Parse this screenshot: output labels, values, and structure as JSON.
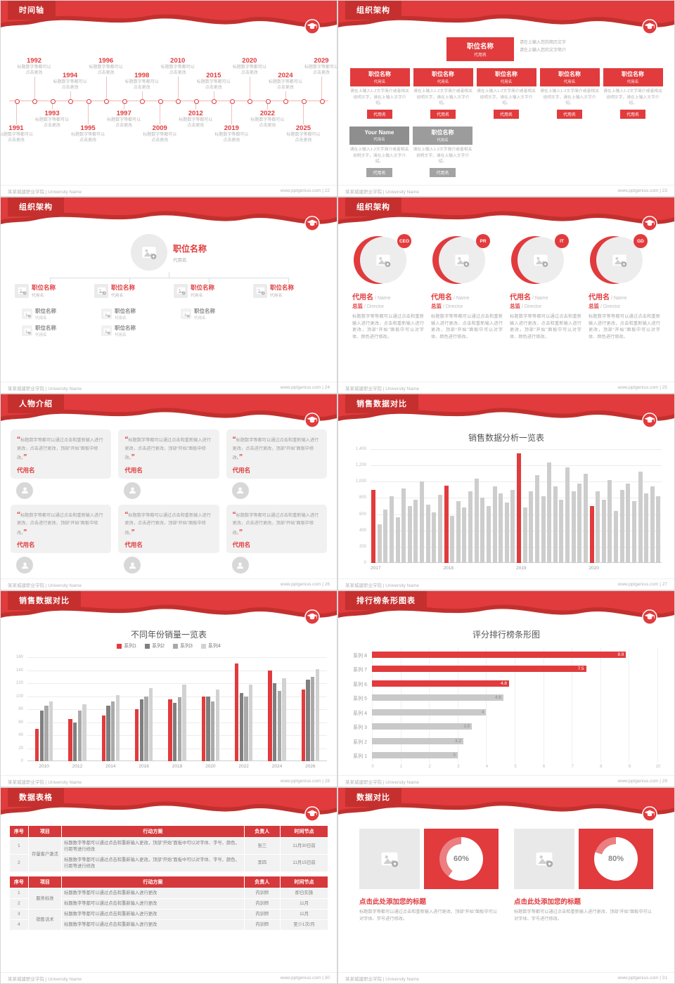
{
  "colors": {
    "accent": "#e13b3d",
    "accent_dark": "#c5302f",
    "bar_gray": "#cdcdcd",
    "text_gray": "#9a9a9a"
  },
  "icons": {
    "logo": "graduation-cap-icon",
    "placeholder": "image-plus-icon",
    "avatar": "person-icon",
    "quote_open": "“",
    "quote_close": "”"
  },
  "footer": {
    "left": "某某城建职业学院 | University Name",
    "site": "www.pptgenius.com"
  },
  "slides": {
    "s22": {
      "title": "时间轴",
      "page": "22",
      "caption": "标题数字等都可以点击更改",
      "items": [
        {
          "year": "1991",
          "side": "bottom",
          "level": 1
        },
        {
          "year": "1992",
          "side": "top",
          "level": 1
        },
        {
          "year": "1993",
          "side": "bottom",
          "level": 2
        },
        {
          "year": "1994",
          "side": "top",
          "level": 2
        },
        {
          "year": "1995",
          "side": "bottom",
          "level": 1
        },
        {
          "year": "1996",
          "side": "top",
          "level": 1
        },
        {
          "year": "1997",
          "side": "bottom",
          "level": 2
        },
        {
          "year": "1998",
          "side": "top",
          "level": 2
        },
        {
          "year": "2009",
          "side": "bottom",
          "level": 1
        },
        {
          "year": "2010",
          "side": "top",
          "level": 1
        },
        {
          "year": "2012",
          "side": "bottom",
          "level": 2
        },
        {
          "year": "2015",
          "side": "top",
          "level": 2
        },
        {
          "year": "2019",
          "side": "bottom",
          "level": 1
        },
        {
          "year": "2020",
          "side": "top",
          "level": 1
        },
        {
          "year": "2022",
          "side": "bottom",
          "level": 2
        },
        {
          "year": "2024",
          "side": "top",
          "level": 2
        },
        {
          "year": "2025",
          "side": "bottom",
          "level": 1
        },
        {
          "year": "2029",
          "side": "top",
          "level": 1
        }
      ]
    },
    "s23": {
      "title": "组织架构",
      "page": "23",
      "root": {
        "title": "职位名称",
        "code": "代用名",
        "note1": "请在上输入您的简历文字",
        "note2": "请在上输入您的文字简介"
      },
      "redRow": [
        {
          "title": "职位名称",
          "code": "代用名",
          "text": "请在上输入1-2文字简介或者相关说明文字，请在上输入文字介绍。",
          "chip": "代用名"
        },
        {
          "title": "职位名称",
          "code": "代用名",
          "text": "请在上输入1-2文字简介或者相关说明文字，请在上输入文字介绍。",
          "chip": "代用名"
        },
        {
          "title": "职位名称",
          "code": "代用名",
          "text": "请在上输入1-2文字简介或者相关说明文字，请在上输入文字介绍。",
          "chip": "代用名"
        },
        {
          "title": "职位名称",
          "code": "代用名",
          "text": "请在上输入1-2文字简介或者相关说明文字，请在上输入文字介绍。",
          "chip": "代用名"
        },
        {
          "title": "职位名称",
          "code": "代用名",
          "text": "请在上输入1-2文字简介或者相关说明文字，请在上输入文字介绍。",
          "chip": "代用名"
        }
      ],
      "grayRow": [
        {
          "title": "Your Name",
          "code": "代用名",
          "text": "请在上输入1-2文字简介或者相关说明文字，请在上输入文字介绍。",
          "chip": "代用名"
        },
        {
          "title": "职位名称",
          "code": "代用名",
          "text": "请在上输入1-2文字简介或者相关说明文字，请在上输入文字介绍。",
          "chip": "代用名"
        }
      ]
    },
    "s24": {
      "title": "组织架构",
      "page": "24",
      "root": {
        "title": "职位名称",
        "code": "代用名"
      },
      "children": [
        {
          "title": "职位名称",
          "code": "代用名",
          "subs": [
            {
              "title": "职位名称",
              "code": "代用名"
            },
            {
              "title": "职位名称",
              "code": "代用名"
            }
          ]
        },
        {
          "title": "职位名称",
          "code": "代用名",
          "subs": [
            {
              "title": "职位名称",
              "code": "代用名"
            },
            {
              "title": "职位名称",
              "code": "代用名"
            }
          ]
        },
        {
          "title": "职位名称",
          "code": "代用名",
          "subs": [
            {
              "title": "职位名称",
              "code": "代用名"
            }
          ]
        },
        {
          "title": "职位名称",
          "code": "代用名",
          "subs": []
        }
      ]
    },
    "s25": {
      "title": "组织架构",
      "page": "25",
      "name": "代用名",
      "nameEn": "Name",
      "role": "总监",
      "roleEn": "Director",
      "text": "标题数字等等都可以通过点击和重新输入进行更改，点击和重新输入进行更改，顶部“开始”面板中可以对字体、颜色进行修改。",
      "items": [
        {
          "badge": "CEO"
        },
        {
          "badge": "PR"
        },
        {
          "badge": "IT"
        },
        {
          "badge": "GD"
        }
      ]
    },
    "s26": {
      "title": "人物介绍",
      "page": "26",
      "cards": [
        {
          "text": "标题数字等都可以通过点击和重新输入进行更改，点击进行更改，顶部“开始”面板中修改。",
          "name": "代用名"
        },
        {
          "text": "标题数字等都可以通过点击和重新输入进行更改，点击进行更改，顶部“开始”面板中修改。",
          "name": "代用名"
        },
        {
          "text": "标题数字等都可以通过点击和重新输入进行更改，点击进行更改，顶部“开始”面板中修改。",
          "name": "代用名"
        },
        {
          "text": "标题数字等都可以通过点击和重新输入进行更改，点击进行更改，顶部“开始”面板中修改。",
          "name": "代用名"
        },
        {
          "text": "标题数字等都可以通过点击和重新输入进行更改，点击进行更改，顶部“开始”面板中修改。",
          "name": "代用名"
        },
        {
          "text": "标题数字等都可以通过点击和重新输入进行更改，点击进行更改，顶部“开始”面板中修改。",
          "name": "代用名"
        }
      ]
    },
    "s27": {
      "title": "销售数据对比",
      "page": "27",
      "chart_data": {
        "type": "bar",
        "title": "销售数据分析一览表",
        "x_groups": [
          "2017",
          "2018",
          "2019",
          "2020"
        ],
        "values": [
          900,
          480,
          660,
          820,
          560,
          920,
          700,
          780,
          1000,
          720,
          620,
          840,
          950,
          580,
          760,
          680,
          880,
          1040,
          800,
          700,
          940,
          860,
          740,
          900,
          1350,
          680,
          880,
          1080,
          820,
          1240,
          940,
          780,
          1180,
          880,
          980,
          1100,
          700,
          880,
          780,
          1020,
          640,
          900,
          980,
          760,
          1120,
          860,
          940,
          820
        ],
        "red_indices": [
          0,
          12,
          24,
          36
        ],
        "ylim": [
          0,
          1400
        ],
        "ytick_step": 200,
        "grid": true
      }
    },
    "s28": {
      "title": "销售数据对比",
      "page": "28",
      "chart_data": {
        "type": "grouped-bar",
        "title": "不同年份销量一览表",
        "categories": [
          "2010",
          "2012",
          "2014",
          "2016",
          "2018",
          "2020",
          "2022",
          "2024",
          "2026"
        ],
        "series": [
          {
            "name": "系列1",
            "color": "#e13b3d",
            "values": [
              50,
              65,
              70,
              80,
              95,
              100,
              150,
              140,
              110
            ]
          },
          {
            "name": "系列2",
            "color": "#7f7f7f",
            "values": [
              78,
              60,
              85,
              95,
              90,
              100,
              105,
              120,
              125
            ]
          },
          {
            "name": "系列3",
            "color": "#a9a9a9",
            "values": [
              85,
              78,
              92,
              100,
              98,
              92,
              100,
              108,
              130
            ]
          },
          {
            "name": "系列4",
            "color": "#d2d2d2",
            "values": [
              92,
              88,
              102,
              112,
              118,
              110,
              118,
              128,
              142
            ]
          }
        ],
        "ylim": [
          0,
          160
        ],
        "ytick_step": 20,
        "grid": true,
        "legend_position": "top"
      }
    },
    "s29": {
      "title": "排行榜条形图表",
      "page": "29",
      "chart_data": {
        "type": "horizontal-bar",
        "title": "评分排行榜条形图",
        "categories": [
          "系列 8",
          "系列 7",
          "系列 6",
          "系列 5",
          "系列 4",
          "系列 3",
          "系列 2",
          "系列 1"
        ],
        "values": [
          8.9,
          7.5,
          4.8,
          4.6,
          4,
          3.5,
          3.2,
          3
        ],
        "red_count": 3,
        "xlim": [
          0,
          10
        ],
        "xtick_step": 1,
        "grid": true
      }
    },
    "s30": {
      "title": "数据表格",
      "page": "30",
      "tables": [
        {
          "widths": [
            26,
            46,
            252,
            50,
            66
          ],
          "headers": [
            "序号",
            "项目",
            "行动方案",
            "负责人",
            "时间节点"
          ],
          "rows": [
            [
              {
                "t": "1"
              },
              {
                "t": "存量客户激活",
                "rs": 2
              },
              {
                "t": "标题数字等都可以通过点击和重新输入更改，顶部“开始”面板中可以对字体、字号、颜色、行距等进行修改"
              },
              {
                "t": "张三"
              },
              {
                "t": "11月30日前"
              }
            ],
            [
              {
                "t": "2"
              },
              null,
              {
                "t": "标题数字等都可以通过点击和重新输入更改，顶部“开始”面板中可以对字体、字号、颜色、行距等进行修改"
              },
              {
                "t": "李四"
              },
              {
                "t": "11月15日前"
              }
            ]
          ]
        },
        {
          "widths": [
            26,
            46,
            252,
            50,
            66
          ],
          "headers": [
            "序号",
            "项目",
            "行动方案",
            "负责人",
            "时间节点"
          ],
          "rows": [
            [
              {
                "t": "1"
              },
              {
                "t": "服务标准",
                "rs": 2
              },
              {
                "t": "标题数字等都可以通过点击和重新输入进行更改"
              },
              {
                "t": "内训师"
              },
              {
                "t": "即日实施"
              }
            ],
            [
              {
                "t": "2"
              },
              null,
              {
                "t": "标题数字等都可以通过点击和重新输入进行更改"
              },
              {
                "t": "内训师"
              },
              {
                "t": "11月"
              }
            ],
            [
              {
                "t": "3"
              },
              {
                "t": "销售话术",
                "rs": 2
              },
              {
                "t": "标题数字等都可以通过点击和重新输入进行更改"
              },
              {
                "t": "内训师"
              },
              {
                "t": "11月"
              }
            ],
            [
              {
                "t": "4"
              },
              null,
              {
                "t": "标题数字等都可以通过点击和重新输入进行更改"
              },
              {
                "t": "内训师"
              },
              {
                "t": "至少1次/月"
              }
            ]
          ]
        }
      ]
    },
    "s31": {
      "title": "数据对比",
      "page": "31",
      "panels": [
        {
          "pct": "60%",
          "value": 60,
          "heading": "点击此处添加您的标题",
          "text": "标题数字等都可以通过点击和重新输入进行更改，顶部“开始”面板中可以对字体、字号进行修改。"
        },
        {
          "pct": "80%",
          "value": 80,
          "heading": "点击此处添加您的标题",
          "text": "标题数字等都可以通过点击和重新输入进行更改，顶部“开始”面板中可以对字体、字号进行修改。"
        }
      ]
    }
  }
}
